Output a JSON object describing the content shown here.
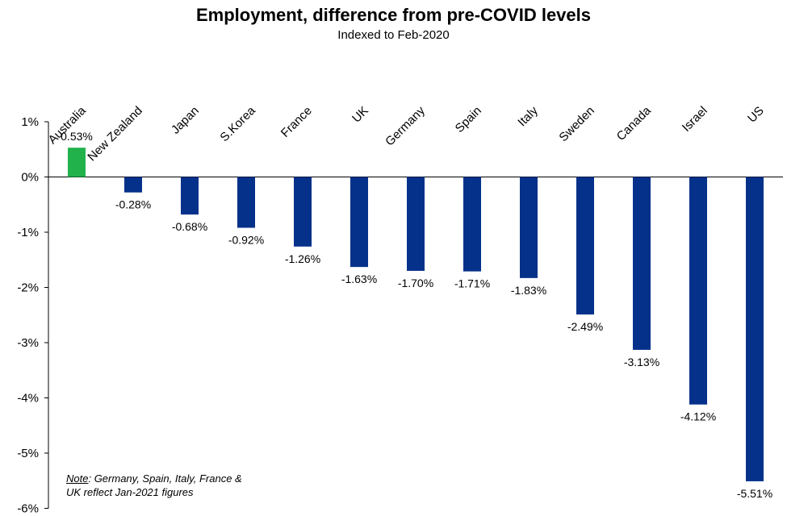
{
  "chart_data": {
    "type": "bar",
    "title": "Employment, difference from pre-COVID levels",
    "subtitle": "Indexed to Feb-2020",
    "categories": [
      "Australia",
      "New Zealand",
      "Japan",
      "S.Korea",
      "France",
      "UK",
      "Germany",
      "Spain",
      "Italy",
      "Sweden",
      "Canada",
      "Israel",
      "US"
    ],
    "values": [
      0.53,
      -0.28,
      -0.68,
      -0.92,
      -1.26,
      -1.63,
      -1.7,
      -1.71,
      -1.83,
      -2.49,
      -3.13,
      -4.12,
      -5.51
    ],
    "data_labels": [
      "0.53%",
      "-0.28%",
      "-0.68%",
      "-0.92%",
      "-1.26%",
      "-1.63%",
      "-1.70%",
      "-1.71%",
      "-1.83%",
      "-2.49%",
      "-3.13%",
      "-4.12%",
      "-5.51%"
    ],
    "ylim": [
      -6,
      1
    ],
    "y_ticks": [
      1,
      0,
      -1,
      -2,
      -3,
      -4,
      -5,
      -6
    ],
    "y_tick_labels": [
      "1%",
      "0%",
      "-1%",
      "-2%",
      "-3%",
      "-4%",
      "-5%",
      "-6%"
    ],
    "xlabel": "",
    "ylabel": "",
    "grid": false,
    "category_axis": "top",
    "colors": {
      "positive": "#21b24b",
      "negative": "#05318a"
    }
  },
  "note": {
    "head": "Note",
    "text": ": Germany, Spain, Italy, France &",
    "line2": "UK reflect Jan-2021 figures"
  }
}
